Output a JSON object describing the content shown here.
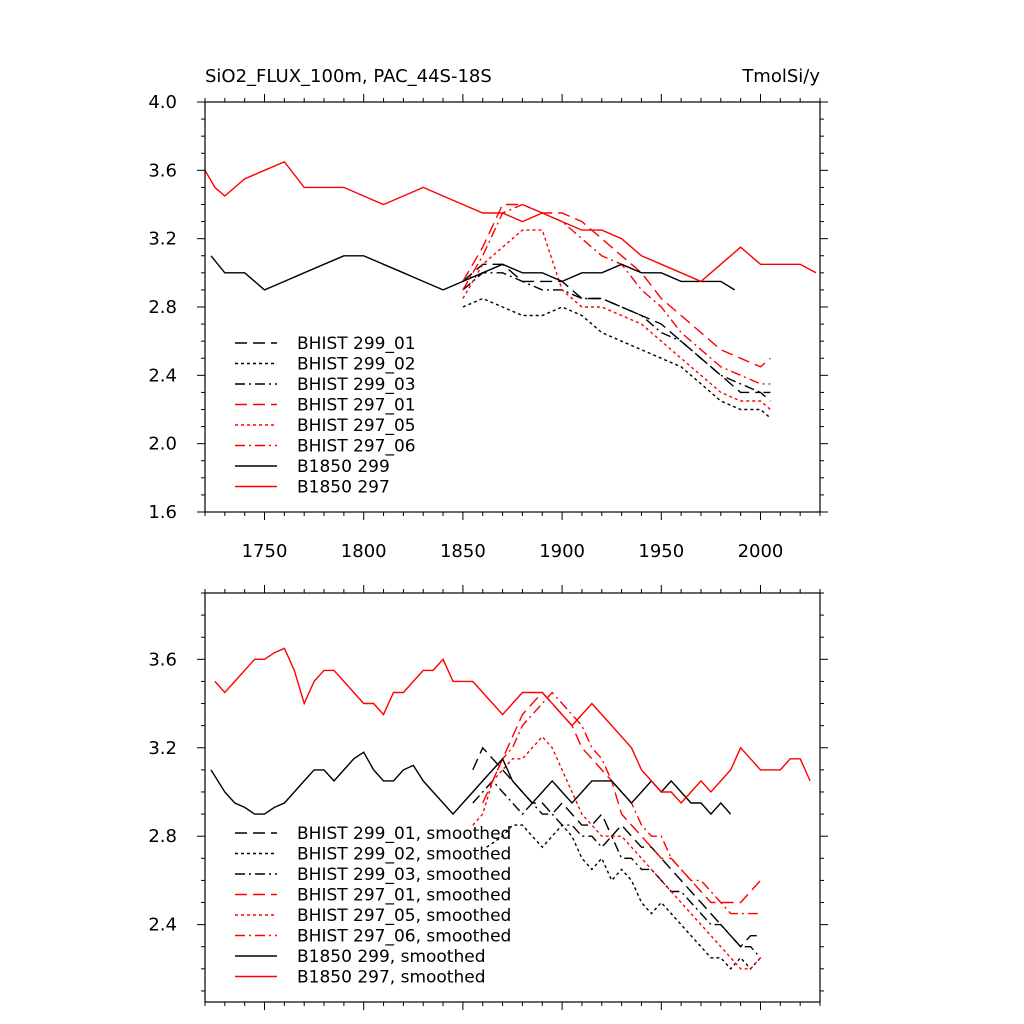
{
  "chart_data": [
    {
      "type": "line",
      "title": "SiO2_FLUX_100m, PAC_44S-18S",
      "units": "TmolSi/y",
      "xlim": [
        1720,
        2030
      ],
      "ylim": [
        1.6,
        4.0
      ],
      "x_ticks": [
        1750,
        1800,
        1850,
        1900,
        1950,
        2000
      ],
      "y_ticks": [
        1.6,
        2.0,
        2.4,
        2.8,
        3.2,
        3.6,
        4.0
      ],
      "legend_position": "lower-left",
      "series": [
        {
          "name": "BHIST 299_01",
          "color": "#000000",
          "dash": "long-dash",
          "x": [
            1850,
            1860,
            1870,
            1880,
            1890,
            1900,
            1910,
            1920,
            1930,
            1940,
            1950,
            1960,
            1970,
            1980,
            1990,
            2000,
            2005
          ],
          "y": [
            2.95,
            3.05,
            3.05,
            2.95,
            2.95,
            2.95,
            2.85,
            2.85,
            2.8,
            2.75,
            2.7,
            2.6,
            2.5,
            2.4,
            2.3,
            2.3,
            2.25
          ]
        },
        {
          "name": "BHIST 299_02",
          "color": "#000000",
          "dash": "dotted",
          "x": [
            1850,
            1860,
            1870,
            1880,
            1890,
            1900,
            1910,
            1920,
            1930,
            1940,
            1950,
            1960,
            1970,
            1980,
            1990,
            2000,
            2005
          ],
          "y": [
            2.8,
            2.85,
            2.8,
            2.75,
            2.75,
            2.8,
            2.75,
            2.65,
            2.6,
            2.55,
            2.5,
            2.45,
            2.35,
            2.25,
            2.2,
            2.2,
            2.15
          ]
        },
        {
          "name": "BHIST 299_03",
          "color": "#000000",
          "dash": "dash-dot",
          "x": [
            1850,
            1860,
            1870,
            1880,
            1890,
            1900,
            1910,
            1920,
            1930,
            1940,
            1950,
            1960,
            1970,
            1980,
            1990,
            2000,
            2005
          ],
          "y": [
            2.9,
            3.0,
            3.0,
            2.95,
            2.9,
            2.9,
            2.85,
            2.85,
            2.8,
            2.75,
            2.65,
            2.6,
            2.5,
            2.4,
            2.35,
            2.3,
            2.3
          ]
        },
        {
          "name": "BHIST 297_01",
          "color": "#ff0000",
          "dash": "long-dash",
          "x": [
            1850,
            1860,
            1870,
            1880,
            1890,
            1900,
            1910,
            1920,
            1930,
            1940,
            1950,
            1960,
            1970,
            1980,
            1990,
            2000,
            2005
          ],
          "y": [
            2.95,
            3.15,
            3.4,
            3.4,
            3.35,
            3.35,
            3.3,
            3.2,
            3.1,
            3.0,
            2.85,
            2.75,
            2.65,
            2.55,
            2.5,
            2.45,
            2.5
          ]
        },
        {
          "name": "BHIST 297_05",
          "color": "#ff0000",
          "dash": "dotted",
          "x": [
            1850,
            1860,
            1870,
            1880,
            1890,
            1900,
            1910,
            1920,
            1930,
            1940,
            1950,
            1960,
            1970,
            1980,
            1990,
            2000,
            2005
          ],
          "y": [
            2.85,
            3.05,
            3.15,
            3.25,
            3.25,
            2.9,
            2.8,
            2.8,
            2.75,
            2.7,
            2.6,
            2.5,
            2.4,
            2.3,
            2.25,
            2.25,
            2.2
          ]
        },
        {
          "name": "BHIST 297_06",
          "color": "#ff0000",
          "dash": "dash-dot",
          "x": [
            1850,
            1860,
            1870,
            1880,
            1890,
            1900,
            1910,
            1920,
            1930,
            1940,
            1950,
            1960,
            1970,
            1980,
            1990,
            2000,
            2005
          ],
          "y": [
            2.9,
            3.1,
            3.35,
            3.4,
            3.35,
            3.3,
            3.2,
            3.1,
            3.05,
            2.9,
            2.8,
            2.65,
            2.55,
            2.45,
            2.4,
            2.35,
            2.35
          ]
        },
        {
          "name": "B1850 299",
          "color": "#000000",
          "dash": "solid",
          "x": [
            1723,
            1730,
            1740,
            1750,
            1760,
            1770,
            1780,
            1790,
            1800,
            1810,
            1820,
            1830,
            1840,
            1850,
            1860,
            1870,
            1880,
            1890,
            1900,
            1910,
            1920,
            1930,
            1940,
            1950,
            1960,
            1970,
            1980,
            1987
          ],
          "y": [
            3.1,
            3.0,
            3.0,
            2.9,
            2.95,
            3.0,
            3.05,
            3.1,
            3.1,
            3.05,
            3.0,
            2.95,
            2.9,
            2.95,
            3.0,
            3.05,
            3.0,
            3.0,
            2.95,
            3.0,
            3.0,
            3.05,
            3.0,
            3.0,
            2.95,
            2.95,
            2.95,
            2.9
          ]
        },
        {
          "name": "B1850 297",
          "color": "#ff0000",
          "dash": "solid",
          "x": [
            1720,
            1725,
            1730,
            1740,
            1750,
            1760,
            1770,
            1780,
            1790,
            1800,
            1810,
            1820,
            1830,
            1840,
            1850,
            1860,
            1870,
            1880,
            1890,
            1900,
            1910,
            1920,
            1930,
            1940,
            1950,
            1960,
            1970,
            1980,
            1990,
            2000,
            2010,
            2020,
            2028
          ],
          "y": [
            3.6,
            3.5,
            3.45,
            3.55,
            3.6,
            3.65,
            3.5,
            3.5,
            3.5,
            3.45,
            3.4,
            3.45,
            3.5,
            3.45,
            3.4,
            3.35,
            3.35,
            3.3,
            3.35,
            3.3,
            3.25,
            3.25,
            3.2,
            3.1,
            3.05,
            3.0,
            2.95,
            3.05,
            3.15,
            3.05,
            3.05,
            3.05,
            3.0
          ]
        }
      ]
    },
    {
      "type": "line",
      "xlim": [
        1720,
        2030
      ],
      "ylim": [
        2.05,
        3.9
      ],
      "x_ticks": [
        1750,
        1800,
        1850,
        1900,
        1950,
        2000
      ],
      "y_ticks": [
        2.4,
        2.8,
        3.2,
        3.6
      ],
      "legend_position": "lower-left",
      "series": [
        {
          "name": "BHIST 299_01, smoothed",
          "color": "#000000",
          "dash": "long-dash",
          "x": [
            1855,
            1860,
            1865,
            1870,
            1875,
            1880,
            1885,
            1890,
            1895,
            1900,
            1905,
            1910,
            1915,
            1920,
            1925,
            1930,
            1935,
            1940,
            1945,
            1950,
            1955,
            1960,
            1965,
            1970,
            1975,
            1980,
            1985,
            1990,
            1995,
            2000
          ],
          "y": [
            3.1,
            3.2,
            3.15,
            3.1,
            3.05,
            3.0,
            2.95,
            2.95,
            2.9,
            2.95,
            2.9,
            2.85,
            2.85,
            2.9,
            2.8,
            2.85,
            2.8,
            2.75,
            2.75,
            2.7,
            2.65,
            2.6,
            2.55,
            2.5,
            2.45,
            2.4,
            2.35,
            2.3,
            2.35,
            2.35
          ]
        },
        {
          "name": "BHIST 299_02, smoothed",
          "color": "#000000",
          "dash": "dotted",
          "x": [
            1862,
            1870,
            1875,
            1880,
            1885,
            1890,
            1895,
            1900,
            1905,
            1910,
            1915,
            1920,
            1925,
            1930,
            1935,
            1940,
            1945,
            1950,
            1955,
            1960,
            1965,
            1970,
            1975,
            1980,
            1985,
            1990,
            1995,
            2000
          ],
          "y": [
            2.75,
            2.8,
            2.85,
            2.85,
            2.8,
            2.75,
            2.8,
            2.85,
            2.8,
            2.7,
            2.65,
            2.7,
            2.6,
            2.65,
            2.6,
            2.5,
            2.45,
            2.5,
            2.45,
            2.4,
            2.35,
            2.3,
            2.25,
            2.25,
            2.2,
            2.25,
            2.2,
            2.25
          ]
        },
        {
          "name": "BHIST 299_03, smoothed",
          "color": "#000000",
          "dash": "dash-dot",
          "x": [
            1855,
            1860,
            1865,
            1870,
            1875,
            1880,
            1885,
            1890,
            1895,
            1900,
            1905,
            1910,
            1915,
            1920,
            1925,
            1930,
            1935,
            1940,
            1945,
            1950,
            1955,
            1960,
            1965,
            1970,
            1975,
            1980,
            1985,
            1990,
            1995,
            2000
          ],
          "y": [
            2.95,
            3.0,
            3.05,
            3.0,
            2.95,
            2.9,
            2.95,
            2.9,
            2.9,
            2.85,
            2.85,
            2.8,
            2.8,
            2.75,
            2.8,
            2.7,
            2.7,
            2.65,
            2.65,
            2.6,
            2.55,
            2.55,
            2.5,
            2.45,
            2.4,
            2.4,
            2.35,
            2.3,
            2.3,
            2.25
          ]
        },
        {
          "name": "BHIST 297_01, smoothed",
          "color": "#ff0000",
          "dash": "long-dash",
          "x": [
            1860,
            1865,
            1870,
            1875,
            1880,
            1885,
            1890,
            1895,
            1900,
            1905,
            1910,
            1915,
            1920,
            1925,
            1930,
            1935,
            1940,
            1945,
            1950,
            1955,
            1960,
            1965,
            1970,
            1975,
            1980,
            1985,
            1990,
            1995,
            2000
          ],
          "y": [
            2.95,
            3.05,
            3.15,
            3.25,
            3.35,
            3.4,
            3.45,
            3.4,
            3.35,
            3.3,
            3.2,
            3.15,
            3.1,
            3.05,
            2.9,
            2.85,
            2.8,
            2.75,
            2.7,
            2.7,
            2.65,
            2.6,
            2.55,
            2.5,
            2.5,
            2.5,
            2.5,
            2.55,
            2.6
          ]
        },
        {
          "name": "BHIST 297_05, smoothed",
          "color": "#ff0000",
          "dash": "dotted",
          "x": [
            1855,
            1860,
            1865,
            1870,
            1875,
            1880,
            1885,
            1890,
            1895,
            1900,
            1905,
            1910,
            1915,
            1920,
            1925,
            1930,
            1935,
            1940,
            1945,
            1950,
            1955,
            1960,
            1965,
            1970,
            1975,
            1980,
            1985,
            1990,
            1995,
            2000
          ],
          "y": [
            2.85,
            2.9,
            3.05,
            3.1,
            3.15,
            3.15,
            3.2,
            3.25,
            3.2,
            3.1,
            3.0,
            2.9,
            2.85,
            2.8,
            2.8,
            2.8,
            2.75,
            2.7,
            2.65,
            2.6,
            2.55,
            2.5,
            2.45,
            2.4,
            2.35,
            2.3,
            2.25,
            2.2,
            2.2,
            2.25
          ]
        },
        {
          "name": "BHIST 297_06, smoothed",
          "color": "#ff0000",
          "dash": "dash-dot",
          "x": [
            1865,
            1870,
            1875,
            1880,
            1885,
            1890,
            1895,
            1900,
            1905,
            1910,
            1915,
            1920,
            1925,
            1930,
            1935,
            1940,
            1945,
            1950,
            1955,
            1960,
            1965,
            1970,
            1975,
            1980,
            1985,
            1990,
            1995,
            2000
          ],
          "y": [
            3.05,
            3.15,
            3.2,
            3.3,
            3.35,
            3.4,
            3.45,
            3.4,
            3.35,
            3.3,
            3.2,
            3.15,
            3.05,
            3.0,
            2.95,
            2.85,
            2.8,
            2.8,
            2.7,
            2.65,
            2.6,
            2.6,
            2.55,
            2.5,
            2.45,
            2.45,
            2.45,
            2.45
          ]
        },
        {
          "name": "B1850 299, smoothed",
          "color": "#000000",
          "dash": "solid",
          "x": [
            1723,
            1730,
            1735,
            1740,
            1745,
            1750,
            1755,
            1760,
            1765,
            1770,
            1775,
            1780,
            1785,
            1790,
            1795,
            1800,
            1805,
            1810,
            1815,
            1820,
            1825,
            1830,
            1835,
            1840,
            1845,
            1850,
            1855,
            1860,
            1865,
            1870,
            1875,
            1880,
            1885,
            1890,
            1895,
            1900,
            1905,
            1910,
            1915,
            1920,
            1925,
            1930,
            1935,
            1940,
            1945,
            1950,
            1955,
            1960,
            1965,
            1970,
            1975,
            1980,
            1985
          ],
          "y": [
            3.1,
            3.0,
            2.95,
            2.93,
            2.9,
            2.9,
            2.93,
            2.95,
            3.0,
            3.05,
            3.1,
            3.1,
            3.05,
            3.1,
            3.15,
            3.18,
            3.1,
            3.05,
            3.05,
            3.1,
            3.12,
            3.05,
            3.0,
            2.95,
            2.9,
            2.95,
            3.0,
            3.05,
            3.1,
            3.15,
            3.05,
            3.0,
            2.95,
            3.0,
            3.05,
            3.0,
            2.95,
            3.0,
            3.05,
            3.05,
            3.05,
            3.0,
            2.95,
            3.0,
            3.05,
            3.0,
            3.05,
            3.0,
            2.95,
            2.95,
            2.9,
            2.95,
            2.9
          ]
        },
        {
          "name": "B1850 297, smoothed",
          "color": "#ff0000",
          "dash": "solid",
          "x": [
            1725,
            1730,
            1735,
            1740,
            1745,
            1750,
            1755,
            1760,
            1765,
            1770,
            1775,
            1780,
            1785,
            1790,
            1795,
            1800,
            1805,
            1810,
            1815,
            1820,
            1825,
            1830,
            1835,
            1840,
            1845,
            1850,
            1855,
            1860,
            1865,
            1870,
            1875,
            1880,
            1885,
            1890,
            1895,
            1900,
            1905,
            1910,
            1915,
            1920,
            1925,
            1930,
            1935,
            1940,
            1945,
            1950,
            1955,
            1960,
            1965,
            1970,
            1975,
            1980,
            1985,
            1990,
            1995,
            2000,
            2005,
            2010,
            2015,
            2020,
            2025
          ],
          "y": [
            3.5,
            3.45,
            3.5,
            3.55,
            3.6,
            3.6,
            3.63,
            3.65,
            3.55,
            3.4,
            3.5,
            3.55,
            3.55,
            3.5,
            3.45,
            3.4,
            3.4,
            3.35,
            3.45,
            3.45,
            3.5,
            3.55,
            3.55,
            3.6,
            3.5,
            3.5,
            3.5,
            3.45,
            3.4,
            3.35,
            3.4,
            3.45,
            3.45,
            3.45,
            3.4,
            3.35,
            3.3,
            3.35,
            3.4,
            3.35,
            3.3,
            3.25,
            3.2,
            3.1,
            3.05,
            3.0,
            3.0,
            2.95,
            3.0,
            3.05,
            3.0,
            3.05,
            3.1,
            3.2,
            3.15,
            3.1,
            3.1,
            3.1,
            3.15,
            3.15,
            3.05
          ]
        }
      ]
    }
  ]
}
